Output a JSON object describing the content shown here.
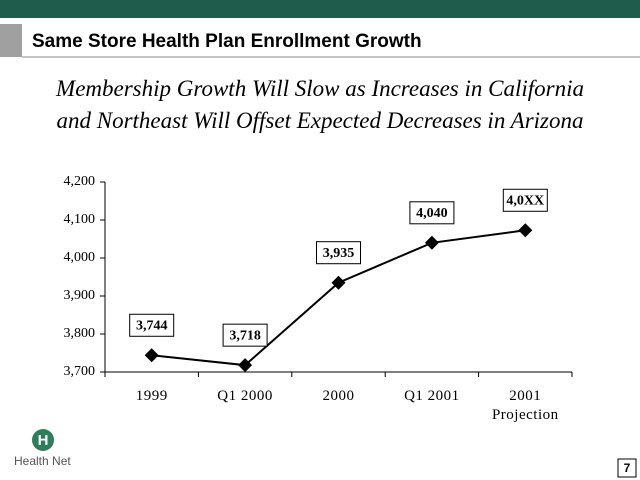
{
  "slide": {
    "header": "Same Store Health Plan Enrollment Growth",
    "logo_mark": "H",
    "logo_text": "Health Net",
    "page_number": "7"
  },
  "chart_data": {
    "type": "line",
    "title": [
      "Membership Growth Will Slow as Increases in California",
      "and Northeast Will Offset Expected Decreases in Arizona"
    ],
    "categories": [
      "1999",
      "Q1 2000",
      "2000",
      "Q1 2001",
      "2001 Projection"
    ],
    "values": [
      3744,
      3718,
      3935,
      4040,
      4073
    ],
    "value_labels": [
      "3,744",
      "3,718",
      "3,935",
      "4,040",
      "4,0XX"
    ],
    "color": "#000000",
    "ylim": [
      3700,
      4200
    ],
    "yticks": [
      {
        "value": 3700,
        "label": "3,700"
      },
      {
        "value": 3800,
        "label": "3,800"
      },
      {
        "value": 3900,
        "label": "3,900"
      },
      {
        "value": 4000,
        "label": "4,000"
      },
      {
        "value": 4100,
        "label": "4,100"
      },
      {
        "value": 4200,
        "label": "4,200"
      }
    ],
    "grid": false
  }
}
